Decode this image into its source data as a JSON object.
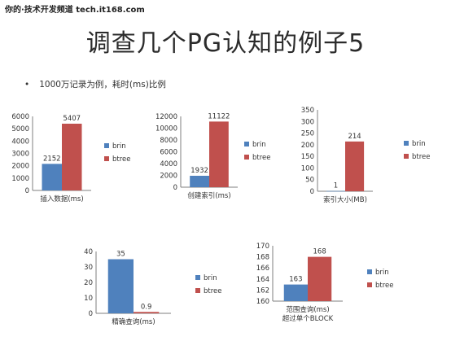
{
  "header": {
    "watermark": "你的·技术开发频道 tech.it168.com",
    "title": "调查几个PG认知的例子5",
    "bullet": "1000万记录为例，耗时(ms)比例"
  },
  "colors": {
    "brin": "#4f81bd",
    "btree": "#c0504d",
    "axis": "#7f7f7f",
    "grid": "#d9d9d9"
  },
  "chart_data": [
    {
      "type": "bar",
      "categories": [
        "插入数据(ms)"
      ],
      "series": [
        {
          "name": "brin",
          "values": [
            2152
          ]
        },
        {
          "name": "btree",
          "values": [
            5407
          ]
        }
      ],
      "ylim": [
        0,
        6000
      ],
      "yticks": [
        "0",
        "1000",
        "2000",
        "3000",
        "4000",
        "5000",
        "6000"
      ],
      "labels": [
        "2152",
        "5407"
      ],
      "xlabel_lines": [
        "插入数据(ms)"
      ],
      "legend": "right"
    },
    {
      "type": "bar",
      "categories": [
        "创建索引(ms)"
      ],
      "series": [
        {
          "name": "brin",
          "values": [
            1932
          ]
        },
        {
          "name": "btree",
          "values": [
            11122
          ]
        }
      ],
      "ylim": [
        0,
        12000
      ],
      "yticks": [
        "0",
        "2000",
        "4000",
        "6000",
        "8000",
        "10000",
        "12000"
      ],
      "labels": [
        "1932",
        "11122"
      ],
      "xlabel_lines": [
        "创建索引(ms)"
      ],
      "legend": "right"
    },
    {
      "type": "bar",
      "categories": [
        "索引大小(MB)"
      ],
      "series": [
        {
          "name": "brin",
          "values": [
            1
          ]
        },
        {
          "name": "btree",
          "values": [
            214
          ]
        }
      ],
      "ylim": [
        0,
        350
      ],
      "yticks": [
        "0",
        "50",
        "100",
        "150",
        "200",
        "250",
        "300",
        "350"
      ],
      "labels": [
        "1",
        "214"
      ],
      "xlabel_lines": [
        "索引大小(MB)"
      ],
      "legend": "right"
    },
    {
      "type": "bar",
      "categories": [
        "精确查询(ms)"
      ],
      "series": [
        {
          "name": "brin",
          "values": [
            35
          ]
        },
        {
          "name": "btree",
          "values": [
            0.9
          ]
        }
      ],
      "ylim": [
        0,
        40
      ],
      "yticks": [
        "0",
        "10",
        "20",
        "30",
        "40"
      ],
      "labels": [
        "35",
        "0.9"
      ],
      "xlabel_lines": [
        "精确查询(ms)"
      ],
      "legend": "right"
    },
    {
      "type": "bar",
      "categories": [
        "范围查询(ms) 超过单个BLOCK"
      ],
      "series": [
        {
          "name": "brin",
          "values": [
            163
          ]
        },
        {
          "name": "btree",
          "values": [
            168
          ]
        }
      ],
      "ylim": [
        160,
        170
      ],
      "yticks": [
        "160",
        "162",
        "164",
        "166",
        "168",
        "170"
      ],
      "labels": [
        "163",
        "168"
      ],
      "xlabel_lines": [
        "范围查询(ms)",
        "超过单个BLOCK"
      ],
      "legend": "right"
    }
  ]
}
